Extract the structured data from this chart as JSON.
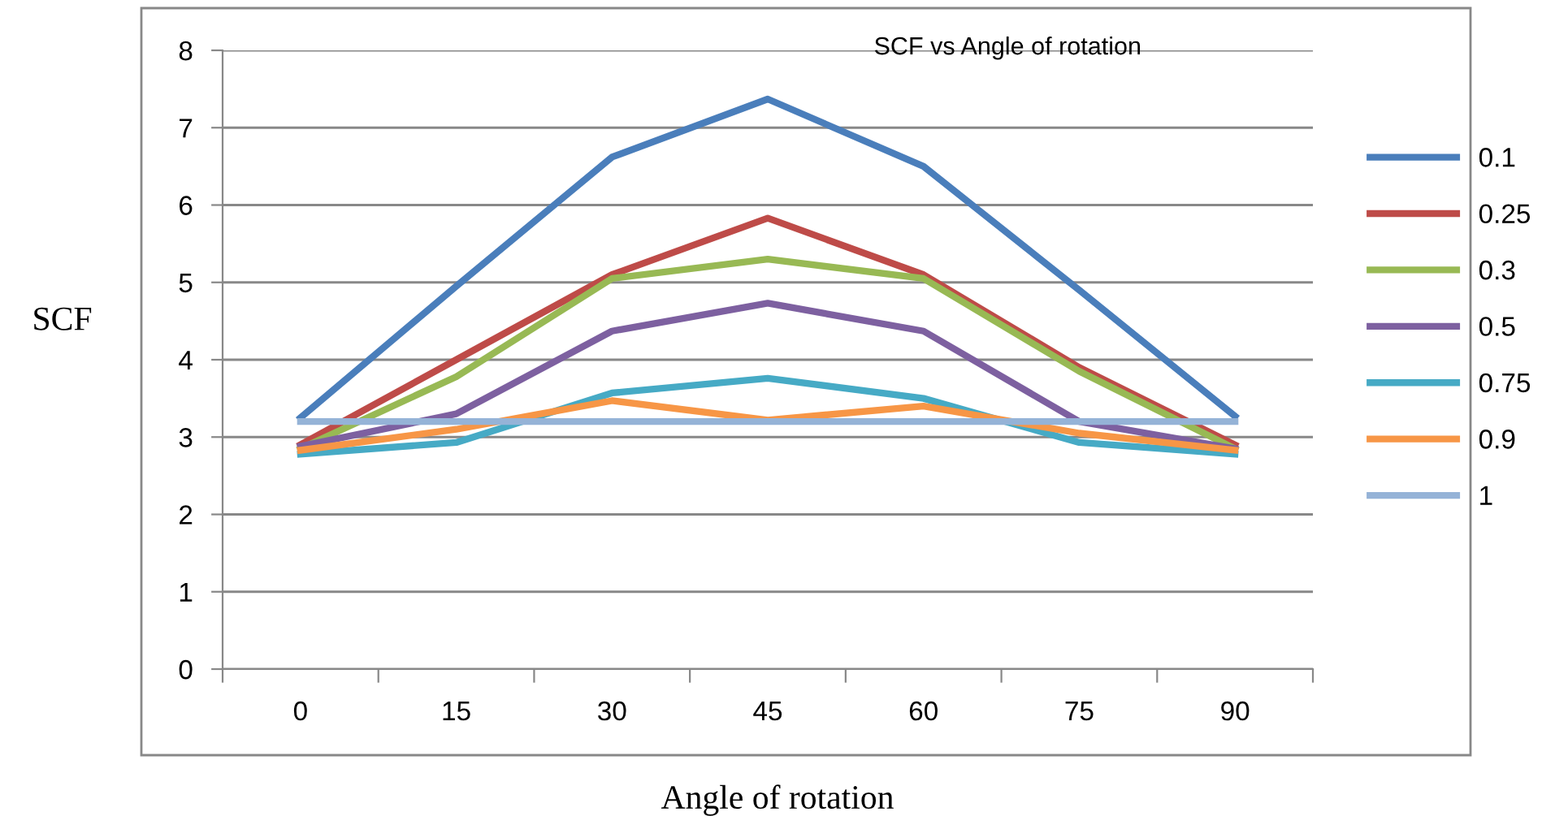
{
  "chart_data": {
    "type": "line",
    "title": "SCF vs Angle of rotation",
    "xlabel": "Angle of rotation",
    "ylabel": "SCF",
    "categories": [
      "0",
      "15",
      "30",
      "45",
      "60",
      "75",
      "90"
    ],
    "ylim": [
      0,
      8
    ],
    "yticks": [
      0,
      1,
      2,
      3,
      4,
      5,
      6,
      7,
      8
    ],
    "grid": "y",
    "legend": "right",
    "marker": "none",
    "line_style": "solid",
    "series": [
      {
        "name": "0.1",
        "color": "#4a7ebb",
        "values": [
          3.25,
          4.95,
          6.62,
          7.37,
          6.5,
          4.9,
          3.27
        ]
      },
      {
        "name": "0.25",
        "color": "#be4b48",
        "values": [
          2.9,
          4.0,
          5.1,
          5.83,
          5.1,
          3.9,
          2.9
        ]
      },
      {
        "name": "0.3",
        "color": "#98b954",
        "values": [
          2.85,
          3.78,
          5.05,
          5.3,
          5.05,
          3.85,
          2.85
        ]
      },
      {
        "name": "0.5",
        "color": "#7d60a0",
        "values": [
          2.88,
          3.3,
          4.37,
          4.73,
          4.37,
          3.2,
          2.85
        ]
      },
      {
        "name": "0.75",
        "color": "#46aac5",
        "values": [
          2.78,
          2.93,
          3.57,
          3.76,
          3.5,
          2.93,
          2.78
        ]
      },
      {
        "name": "0.9",
        "color": "#f79646",
        "values": [
          2.83,
          3.1,
          3.47,
          3.22,
          3.4,
          3.05,
          2.83
        ]
      },
      {
        "name": "1",
        "color": "#95b3d7",
        "values": [
          3.2,
          3.2,
          3.2,
          3.2,
          3.2,
          3.2,
          3.2
        ]
      }
    ]
  }
}
